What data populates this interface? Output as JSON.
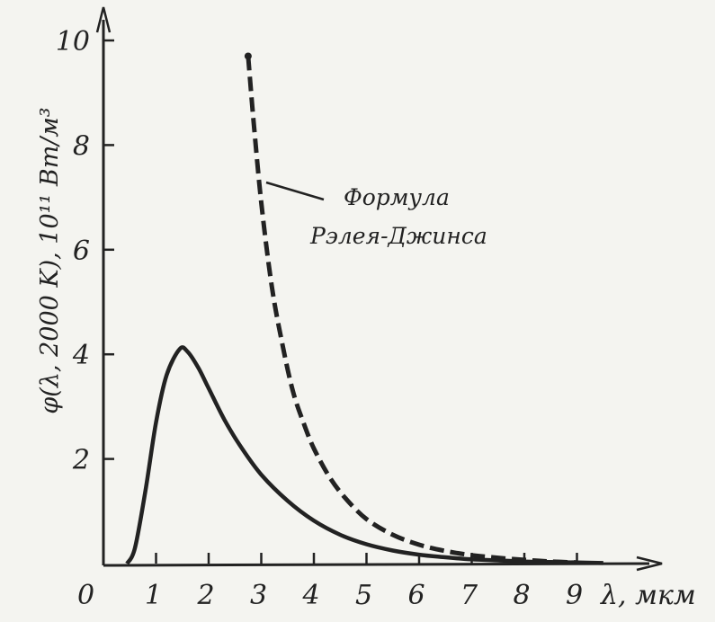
{
  "chart_data": {
    "type": "line",
    "ylabel": "φ(λ, 2000 K),  10¹¹ Вт/м³",
    "xlabel_unit": "λ, мкм",
    "origin_label": "0",
    "xlim": [
      0,
      10.5
    ],
    "ylim": [
      0,
      10.5
    ],
    "x_ticks": [
      1,
      2,
      3,
      4,
      5,
      6,
      7,
      8,
      9
    ],
    "y_ticks": [
      2,
      4,
      6,
      8,
      10
    ],
    "grid": false,
    "annotation": {
      "lines": [
        "Формула",
        "Рэлея-Джинса"
      ]
    },
    "series": [
      {
        "style": "solid",
        "color": "#222222",
        "x": [
          0.45,
          0.6,
          0.8,
          1.0,
          1.2,
          1.45,
          1.6,
          1.8,
          2.0,
          2.3,
          2.6,
          3.0,
          3.5,
          4.0,
          4.5,
          5.0,
          5.5,
          6.0,
          6.5,
          7.0,
          7.5,
          8.0,
          8.5,
          9.0,
          9.5
        ],
        "y": [
          0.0,
          0.3,
          1.4,
          2.7,
          3.6,
          4.1,
          4.05,
          3.75,
          3.35,
          2.75,
          2.25,
          1.7,
          1.2,
          0.82,
          0.55,
          0.37,
          0.25,
          0.17,
          0.12,
          0.08,
          0.06,
          0.04,
          0.03,
          0.02,
          0.01
        ]
      },
      {
        "style": "dashed",
        "color": "#222222",
        "x": [
          2.75,
          2.85,
          3.0,
          3.2,
          3.4,
          3.6,
          3.8,
          4.0,
          4.3,
          4.6,
          5.0,
          5.5,
          6.0,
          6.5,
          7.0,
          7.5,
          8.0,
          8.5,
          9.0
        ],
        "y": [
          9.7,
          8.5,
          6.9,
          5.3,
          4.2,
          3.3,
          2.7,
          2.2,
          1.65,
          1.25,
          0.85,
          0.55,
          0.36,
          0.24,
          0.16,
          0.11,
          0.07,
          0.04,
          0.02
        ]
      }
    ]
  }
}
